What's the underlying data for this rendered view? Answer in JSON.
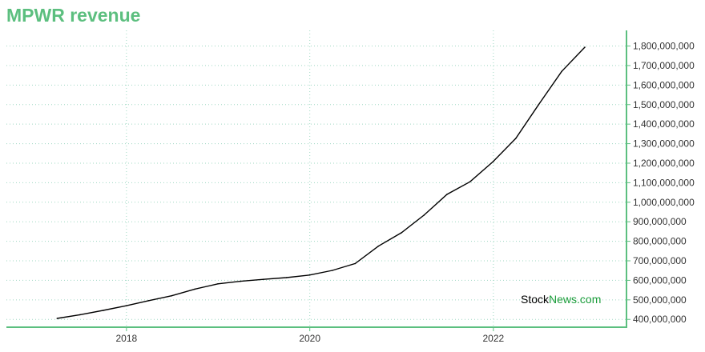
{
  "chart_data": {
    "type": "line",
    "title": "MPWR revenue",
    "watermark": {
      "part1": "Stock",
      "part2": "News",
      "part3": ".com"
    },
    "colors": {
      "accent": "#5cbf7f",
      "line": "#000000",
      "grid": "#9fd8c2",
      "watermark_dark": "#000000",
      "watermark_green": "#1a9c3a"
    },
    "x_ticks": [
      {
        "label": "2018",
        "value": "2018-01-01"
      },
      {
        "label": "2020",
        "value": "2020-01-01"
      },
      {
        "label": "2022",
        "value": "2022-01-01"
      }
    ],
    "xlim": [
      "2016-09-10",
      "2023-06-15"
    ],
    "ylim": [
      360000000,
      1880000000
    ],
    "y_ticks": [
      {
        "label": "400,000,000",
        "value": 400000000
      },
      {
        "label": "500,000,000",
        "value": 500000000
      },
      {
        "label": "600,000,000",
        "value": 600000000
      },
      {
        "label": "700,000,000",
        "value": 700000000
      },
      {
        "label": "800,000,000",
        "value": 800000000
      },
      {
        "label": "900,000,000",
        "value": 900000000
      },
      {
        "label": "1,000,000,000",
        "value": 1000000000
      },
      {
        "label": "1,100,000,000",
        "value": 1100000000
      },
      {
        "label": "1,200,000,000",
        "value": 1200000000
      },
      {
        "label": "1,300,000,000",
        "value": 1300000000
      },
      {
        "label": "1,400,000,000",
        "value": 1400000000
      },
      {
        "label": "1,500,000,000",
        "value": 1500000000
      },
      {
        "label": "1,600,000,000",
        "value": 1600000000
      },
      {
        "label": "1,700,000,000",
        "value": 1700000000
      },
      {
        "label": "1,800,000,000",
        "value": 1800000000
      }
    ],
    "grid": true,
    "series": [
      {
        "points": [
          {
            "x": "2017-03-31",
            "y": 405000000
          },
          {
            "x": "2017-06-30",
            "y": 424000000
          },
          {
            "x": "2017-09-30",
            "y": 446000000
          },
          {
            "x": "2017-12-31",
            "y": 470000000
          },
          {
            "x": "2018-03-31",
            "y": 496000000
          },
          {
            "x": "2018-06-30",
            "y": 521000000
          },
          {
            "x": "2018-09-30",
            "y": 555000000
          },
          {
            "x": "2018-12-31",
            "y": 582000000
          },
          {
            "x": "2019-03-31",
            "y": 595000000
          },
          {
            "x": "2019-06-30",
            "y": 605000000
          },
          {
            "x": "2019-09-30",
            "y": 614000000
          },
          {
            "x": "2019-12-31",
            "y": 627000000
          },
          {
            "x": "2020-03-31",
            "y": 651000000
          },
          {
            "x": "2020-06-30",
            "y": 686000000
          },
          {
            "x": "2020-09-30",
            "y": 775000000
          },
          {
            "x": "2020-12-31",
            "y": 844000000
          },
          {
            "x": "2021-03-31",
            "y": 934000000
          },
          {
            "x": "2021-06-30",
            "y": 1040000000
          },
          {
            "x": "2021-09-30",
            "y": 1105000000
          },
          {
            "x": "2021-12-31",
            "y": 1208000000
          },
          {
            "x": "2022-03-31",
            "y": 1327000000
          },
          {
            "x": "2022-06-30",
            "y": 1500000000
          },
          {
            "x": "2022-09-30",
            "y": 1670000000
          },
          {
            "x": "2022-12-31",
            "y": 1794000000
          }
        ]
      }
    ]
  }
}
